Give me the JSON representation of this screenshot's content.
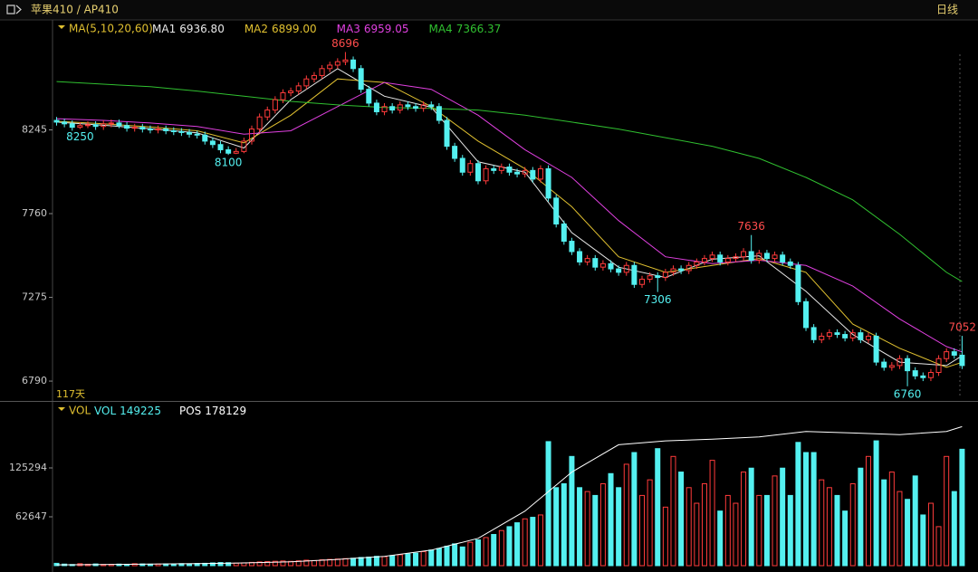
{
  "chart_data": {
    "type": "candlestick",
    "title": "苹果410 / AP410",
    "period": "日线",
    "days_label": "117天",
    "indicator": "MA(5,10,20,60)",
    "ylim": [
      6675,
      8882
    ],
    "yticks": [
      6790,
      7275,
      7760,
      8245
    ],
    "up_color": "#ff3b3b",
    "down_color": "#54f0f0",
    "open": [
      8300,
      8290,
      8280,
      8260,
      8270,
      8275,
      8265,
      8280,
      8285,
      8270,
      8255,
      8260,
      8250,
      8245,
      8250,
      8240,
      8235,
      8230,
      8220,
      8215,
      8180,
      8160,
      8130,
      8110,
      8120,
      8180,
      8250,
      8320,
      8360,
      8420,
      8460,
      8470,
      8500,
      8540,
      8560,
      8600,
      8620,
      8640,
      8650,
      8600,
      8480,
      8400,
      8350,
      8380,
      8360,
      8390,
      8380,
      8370,
      8390,
      8380,
      8300,
      8150,
      8080,
      8000,
      8050,
      7950,
      8020,
      8010,
      8030,
      8000,
      7990,
      8010,
      7960,
      8020,
      7850,
      7700,
      7600,
      7540,
      7480,
      7500,
      7450,
      7470,
      7440,
      7420,
      7460,
      7350,
      7380,
      7400,
      7390,
      7420,
      7440,
      7430,
      7460,
      7480,
      7500,
      7520,
      7480,
      7500,
      7510,
      7540,
      7490,
      7530,
      7500,
      7520,
      7480,
      7460,
      7250,
      7100,
      7030,
      7050,
      7070,
      7060,
      7040,
      7070,
      7030,
      7050,
      6900,
      6870,
      6880,
      6920,
      6850,
      6820,
      6810,
      6840,
      6920,
      6960,
      6940
    ],
    "high": [
      8320,
      8310,
      8300,
      8290,
      8295,
      8295,
      8300,
      8305,
      8305,
      8290,
      8280,
      8280,
      8270,
      8270,
      8270,
      8260,
      8255,
      8250,
      8240,
      8235,
      8200,
      8180,
      8150,
      8140,
      8200,
      8270,
      8340,
      8380,
      8440,
      8480,
      8490,
      8520,
      8560,
      8580,
      8620,
      8640,
      8660,
      8696,
      8670,
      8620,
      8500,
      8420,
      8400,
      8400,
      8410,
      8410,
      8400,
      8410,
      8410,
      8400,
      8320,
      8170,
      8100,
      8070,
      8070,
      8040,
      8040,
      8050,
      8050,
      8020,
      8030,
      8030,
      8040,
      8040,
      7870,
      7720,
      7620,
      7560,
      7520,
      7520,
      7490,
      7490,
      7460,
      7480,
      7480,
      7400,
      7420,
      7420,
      7440,
      7460,
      7460,
      7480,
      7500,
      7520,
      7540,
      7540,
      7520,
      7530,
      7560,
      7636,
      7550,
      7550,
      7540,
      7540,
      7500,
      7480,
      7270,
      7120,
      7070,
      7090,
      7090,
      7080,
      7090,
      7090,
      7070,
      7070,
      6920,
      6900,
      6940,
      6940,
      6870,
      6840,
      6860,
      6940,
      6980,
      6980,
      7052
    ],
    "low": [
      8270,
      8260,
      8240,
      8250,
      8255,
      8245,
      8245,
      8260,
      8255,
      8235,
      8235,
      8230,
      8225,
      8225,
      8220,
      8215,
      8210,
      8200,
      8195,
      8160,
      8140,
      8110,
      8100,
      8105,
      8110,
      8160,
      8230,
      8300,
      8340,
      8400,
      8440,
      8450,
      8480,
      8520,
      8540,
      8580,
      8600,
      8620,
      8580,
      8460,
      8380,
      8330,
      8330,
      8340,
      8340,
      8360,
      8350,
      8350,
      8360,
      8280,
      8130,
      8060,
      7980,
      7980,
      7930,
      7930,
      7990,
      7990,
      7980,
      7970,
      7970,
      7940,
      7940,
      7830,
      7680,
      7580,
      7520,
      7460,
      7460,
      7430,
      7430,
      7420,
      7400,
      7400,
      7330,
      7330,
      7360,
      7306,
      7370,
      7400,
      7410,
      7410,
      7440,
      7460,
      7480,
      7460,
      7460,
      7480,
      7490,
      7470,
      7470,
      7480,
      7480,
      7460,
      7440,
      7230,
      7080,
      7010,
      7010,
      7030,
      7040,
      7020,
      7020,
      7010,
      7010,
      6880,
      6850,
      6850,
      6860,
      6760,
      6800,
      6790,
      6790,
      6820,
      6900,
      6920,
      6860
    ],
    "close": [
      8290,
      8280,
      8260,
      8270,
      8275,
      8265,
      8280,
      8285,
      8270,
      8255,
      8260,
      8250,
      8245,
      8250,
      8240,
      8235,
      8230,
      8220,
      8215,
      8180,
      8160,
      8130,
      8110,
      8120,
      8180,
      8250,
      8320,
      8360,
      8420,
      8460,
      8470,
      8500,
      8540,
      8560,
      8600,
      8620,
      8640,
      8650,
      8600,
      8480,
      8400,
      8350,
      8380,
      8360,
      8390,
      8380,
      8370,
      8390,
      8380,
      8300,
      8150,
      8080,
      8000,
      8050,
      7950,
      8020,
      8010,
      8030,
      8000,
      7990,
      8010,
      7960,
      8020,
      7850,
      7700,
      7600,
      7540,
      7480,
      7500,
      7450,
      7470,
      7440,
      7420,
      7460,
      7350,
      7380,
      7400,
      7390,
      7420,
      7440,
      7430,
      7460,
      7480,
      7500,
      7520,
      7480,
      7500,
      7510,
      7540,
      7490,
      7530,
      7500,
      7520,
      7480,
      7460,
      7250,
      7100,
      7030,
      7050,
      7070,
      7060,
      7040,
      7070,
      7030,
      7050,
      6900,
      6870,
      6880,
      6920,
      6850,
      6820,
      6810,
      6840,
      6920,
      6960,
      6940,
      6880
    ],
    "ma_x": [
      0,
      6,
      12,
      18,
      24,
      30,
      36,
      42,
      48,
      54,
      60,
      66,
      72,
      78,
      84,
      90,
      96,
      102,
      108,
      114,
      116
    ],
    "ma": [
      {
        "name": "MA1",
        "color": "#e8e8e8",
        "value_label": "6936.80",
        "values": [
          8290,
          8272,
          8252,
          8228,
          8140,
          8420,
          8600,
          8440,
          8376,
          8060,
          8000,
          7650,
          7450,
          7390,
          7496,
          7516,
          7310,
          7060,
          6900,
          6880,
          6936.8
        ]
      },
      {
        "name": "MA2",
        "color": "#e0c030",
        "value_label": "6899.00",
        "values": [
          8295,
          8280,
          8262,
          8240,
          8170,
          8330,
          8540,
          8520,
          8380,
          8180,
          8020,
          7800,
          7510,
          7420,
          7460,
          7500,
          7420,
          7120,
          6980,
          6870,
          6899
        ]
      },
      {
        "name": "MA3",
        "color": "#e040e0",
        "value_label": "6959.05",
        "values": [
          8310,
          8300,
          8285,
          8265,
          8220,
          8240,
          8380,
          8520,
          8480,
          8330,
          8130,
          7970,
          7720,
          7510,
          7470,
          7490,
          7460,
          7340,
          7150,
          6990,
          6959.05
        ]
      },
      {
        "name": "MA4",
        "color": "#30c030",
        "value_label": "7366.37",
        "values": [
          8525,
          8510,
          8495,
          8470,
          8440,
          8410,
          8390,
          8375,
          8370,
          8360,
          8330,
          8290,
          8250,
          8200,
          8150,
          8080,
          7970,
          7840,
          7640,
          7420,
          7366.37
        ]
      }
    ],
    "annotations": [
      {
        "value": 8250,
        "at": "low"
      },
      {
        "value": 8100,
        "at": "low"
      },
      {
        "value": 8696,
        "at": "high"
      },
      {
        "value": 7306,
        "at": "low"
      },
      {
        "value": 7636,
        "at": "high"
      },
      {
        "value": 6760,
        "at": "low"
      },
      {
        "value": 7052,
        "at": "high"
      }
    ],
    "volume": {
      "indicator": "VOL",
      "ylim": [
        0,
        208800
      ],
      "yticks": [
        62647,
        125294
      ],
      "series": [
        {
          "name": "VOL",
          "color": "#54f0f0",
          "values": [
            3000,
            2000,
            1500,
            2500,
            1800,
            2200,
            1500,
            1700,
            2000,
            1800,
            2500,
            2200,
            1900,
            2100,
            2300,
            2000,
            2600,
            2400,
            2800,
            3000,
            3500,
            4000,
            3800,
            3200,
            3600,
            4200,
            4800,
            5200,
            5600,
            6000,
            5500,
            6200,
            7000,
            6500,
            7500,
            8000,
            8500,
            9000,
            9500,
            10500,
            11000,
            12000,
            11500,
            13000,
            14000,
            15000,
            16000,
            18000,
            20000,
            22000,
            25000,
            28000,
            24000,
            30000,
            33000,
            36000,
            40000,
            45000,
            50000,
            55000,
            60000,
            62000,
            65000,
            159000,
            100000,
            105000,
            140000,
            100000,
            95000,
            90000,
            105000,
            118000,
            100000,
            130000,
            145000,
            90000,
            110000,
            150000,
            75000,
            140000,
            120000,
            100000,
            80000,
            105000,
            135000,
            70000,
            90000,
            80000,
            120000,
            125000,
            90000,
            90000,
            115000,
            125000,
            90000,
            158000,
            145000,
            145000,
            110000,
            100000,
            90000,
            70000,
            105000,
            125000,
            140000,
            160000,
            110000,
            120000,
            95000,
            85000,
            115000,
            65000,
            80000,
            50000,
            140000,
            95000,
            149225
          ]
        },
        {
          "name": "POS",
          "color": "#ffffff",
          "values": [
            1000,
            1500,
            2000,
            2500,
            3500,
            5000,
            8000,
            12000,
            20000,
            35000,
            70000,
            120000,
            155000,
            160000,
            162000,
            165000,
            172000,
            170000,
            168000,
            172000,
            178129
          ]
        }
      ]
    }
  }
}
